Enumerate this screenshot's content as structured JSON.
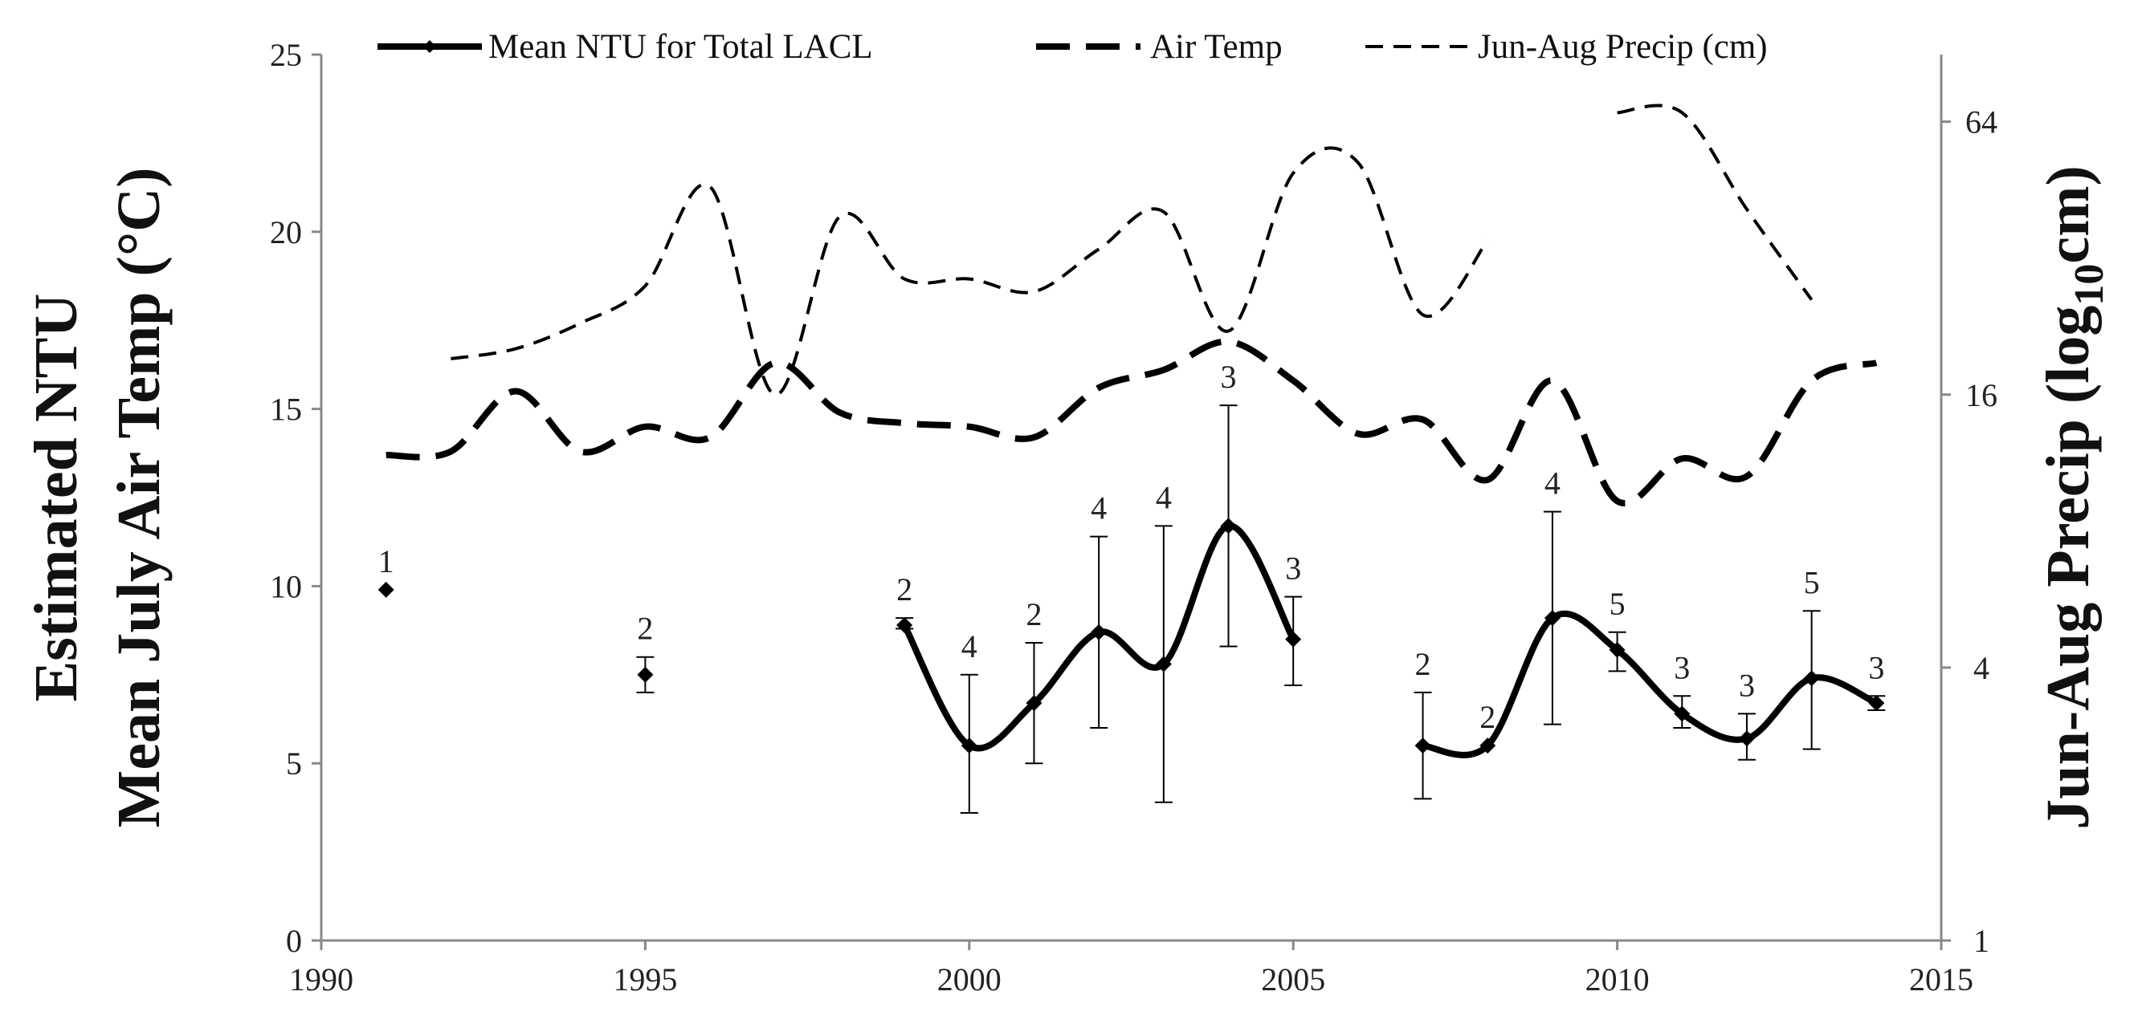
{
  "chart_data": {
    "type": "line",
    "title": "",
    "x": {
      "label": "",
      "range": [
        1990,
        2015
      ],
      "ticks": [
        1990,
        1995,
        2000,
        2005,
        2010,
        2015
      ]
    },
    "y_left": {
      "label_line1": "Estimated NTU",
      "label_line2": "Mean July Air Temp (°C)",
      "range": [
        0,
        25
      ],
      "ticks": [
        0,
        5,
        10,
        15,
        20,
        25
      ]
    },
    "y_right": {
      "label_main": "Jun-Aug Precip (log",
      "label_sub": "10",
      "label_tail": "cm)",
      "scale": "log2",
      "range": [
        1,
        90
      ],
      "ticks": [
        1,
        4,
        16,
        64
      ]
    },
    "legend": {
      "position": "top",
      "entries": [
        "Mean NTU for Total LACL",
        "Air Temp",
        "Jun-Aug Precip (cm)"
      ]
    },
    "series": [
      {
        "name": "Mean NTU for Total LACL",
        "axis": "left",
        "style": "solid",
        "points": [
          {
            "x": 1991,
            "y": 9.9,
            "err_lo": 9.9,
            "err_hi": 9.9,
            "n": "1"
          },
          {
            "x": 1995,
            "y": 7.5,
            "err_lo": 7.0,
            "err_hi": 8.0,
            "n": "2"
          },
          {
            "x": 1999,
            "y": 8.9,
            "err_lo": 8.8,
            "err_hi": 9.1,
            "n": "2"
          },
          {
            "x": 2000,
            "y": 5.5,
            "err_lo": 3.6,
            "err_hi": 7.5,
            "n": "4"
          },
          {
            "x": 2001,
            "y": 6.7,
            "err_lo": 5.0,
            "err_hi": 8.4,
            "n": "2"
          },
          {
            "x": 2002,
            "y": 8.7,
            "err_lo": 6.0,
            "err_hi": 11.4,
            "n": "4"
          },
          {
            "x": 2003,
            "y": 7.8,
            "err_lo": 3.9,
            "err_hi": 11.7,
            "n": "4"
          },
          {
            "x": 2004,
            "y": 11.7,
            "err_lo": 8.3,
            "err_hi": 15.1,
            "n": "3"
          },
          {
            "x": 2005,
            "y": 8.5,
            "err_lo": 7.2,
            "err_hi": 9.7,
            "n": "3"
          },
          {
            "x": 2007,
            "y": 5.5,
            "err_lo": 4.0,
            "err_hi": 7.0,
            "n": "2"
          },
          {
            "x": 2008,
            "y": 5.5,
            "err_lo": 5.5,
            "err_hi": 5.5,
            "n": "2"
          },
          {
            "x": 2009,
            "y": 9.1,
            "err_lo": 6.1,
            "err_hi": 12.1,
            "n": "4"
          },
          {
            "x": 2010,
            "y": 8.2,
            "err_lo": 7.6,
            "err_hi": 8.7,
            "n": "5"
          },
          {
            "x": 2011,
            "y": 6.4,
            "err_lo": 6.0,
            "err_hi": 6.9,
            "n": "3"
          },
          {
            "x": 2012,
            "y": 5.7,
            "err_lo": 5.1,
            "err_hi": 6.4,
            "n": "3"
          },
          {
            "x": 2013,
            "y": 7.4,
            "err_lo": 5.4,
            "err_hi": 9.3,
            "n": "5"
          },
          {
            "x": 2014,
            "y": 6.7,
            "err_lo": 6.5,
            "err_hi": 6.9,
            "n": "3"
          }
        ],
        "curve_segments": [
          [
            1999,
            2005
          ],
          [
            2007,
            2014
          ]
        ]
      },
      {
        "name": "Air Temp",
        "axis": "left",
        "style": "long-dash",
        "segments": [
          {
            "x": [
              1991,
              1992,
              1993,
              1994,
              1995,
              1996,
              1997,
              1998,
              1999,
              2000,
              2001,
              2002,
              2003,
              2004,
              2005,
              2006,
              2007,
              2008,
              2009,
              2010,
              2011,
              2012,
              2013,
              2014
            ],
            "y": [
              13.7,
              13.8,
              15.5,
              13.8,
              14.5,
              14.2,
              16.3,
              14.9,
              14.6,
              14.5,
              14.2,
              15.6,
              16.1,
              16.9,
              15.8,
              14.3,
              14.7,
              13.0,
              15.8,
              12.4,
              13.6,
              13.1,
              15.8,
              16.3
            ]
          }
        ]
      },
      {
        "name": "Jun-Aug Precip (cm)",
        "axis": "right",
        "style": "short-dash",
        "segments": [
          {
            "x": [
              1992,
              1993,
              1994,
              1995,
              1996,
              1997,
              1998,
              1999,
              2000,
              2001,
              2002,
              2003,
              2004,
              2005,
              2006,
              2007,
              2008
            ],
            "y": [
              19.2,
              20.2,
              23.0,
              27.8,
              46.0,
              16.0,
              39.5,
              28.8,
              28.8,
              27.0,
              33.5,
              40.5,
              22.1,
              49.3,
              52.0,
              24.0,
              35.0
            ]
          },
          {
            "x": [
              2010,
              2011,
              2012,
              2013
            ],
            "y": [
              67.0,
              67.0,
              41.0,
              25.9
            ]
          }
        ]
      }
    ]
  }
}
